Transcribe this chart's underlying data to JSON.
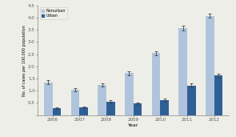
{
  "years": [
    2006,
    2007,
    2008,
    2009,
    2010,
    2011,
    2012
  ],
  "nonurban_values": [
    1.35,
    1.05,
    1.25,
    1.72,
    2.55,
    3.58,
    4.08
  ],
  "urban_values": [
    0.28,
    0.31,
    0.55,
    0.48,
    0.62,
    1.22,
    1.62
  ],
  "nonurban_errors": [
    0.07,
    0.06,
    0.07,
    0.08,
    0.08,
    0.09,
    0.08
  ],
  "urban_errors": [
    0.04,
    0.04,
    0.06,
    0.05,
    0.05,
    0.08,
    0.08
  ],
  "nonurban_color": "#afc4dc",
  "urban_color": "#2e6096",
  "ylabel": "No. of cases per 100,000 population",
  "xlabel": "Year",
  "ylim": [
    0,
    4.5
  ],
  "yticks": [
    0.0,
    0.5,
    1.0,
    1.5,
    2.0,
    2.5,
    3.0,
    3.5,
    4.0,
    4.5
  ],
  "legend_nonurban": "Nonurban",
  "legend_urban": "Urban",
  "bar_width": 0.32,
  "background_color": "#eeeee8",
  "axes_background": "#eeeee8"
}
